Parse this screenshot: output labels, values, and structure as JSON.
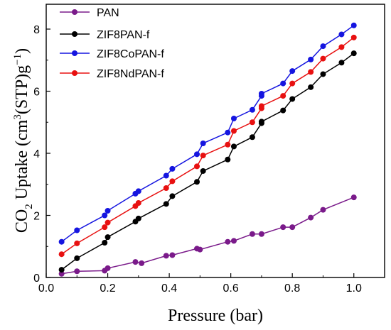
{
  "chart_data": {
    "type": "line",
    "xlabel": "Pressure (bar)",
    "ylabel": {
      "prefix": "CO",
      "sub": "2",
      "middle": " Uptake (cm",
      "sup": "3",
      "suffix": "(STP)g",
      "sup2": "−1",
      "close": ")"
    },
    "xlim": [
      0.0,
      1.1
    ],
    "ylim": [
      0,
      8.8
    ],
    "xticks": [
      0.0,
      0.2,
      0.4,
      0.6,
      0.8,
      1.0
    ],
    "xtick_labels": [
      "0.0",
      "0.2",
      "0.4",
      "0.6",
      "0.8",
      "1.0"
    ],
    "yticks": [
      0,
      2,
      4,
      6,
      8
    ],
    "ytick_labels": [
      "0",
      "2",
      "4",
      "6",
      "8"
    ],
    "legend_position": "top-left",
    "series": [
      {
        "name": "PAN",
        "color": "#7a1a8a",
        "x": [
          0.05,
          0.1,
          0.19,
          0.2,
          0.29,
          0.31,
          0.39,
          0.41,
          0.49,
          0.5,
          0.59,
          0.61,
          0.67,
          0.7,
          0.77,
          0.8,
          0.86,
          0.9,
          1.0
        ],
        "y": [
          0.12,
          0.2,
          0.22,
          0.3,
          0.5,
          0.46,
          0.7,
          0.72,
          0.93,
          0.9,
          1.15,
          1.18,
          1.4,
          1.4,
          1.62,
          1.62,
          1.93,
          2.18,
          2.58
        ]
      },
      {
        "name": "ZIF8PAN-f",
        "color": "#000000",
        "x": [
          0.05,
          0.1,
          0.19,
          0.2,
          0.29,
          0.3,
          0.39,
          0.41,
          0.49,
          0.51,
          0.59,
          0.61,
          0.67,
          0.7,
          0.7,
          0.77,
          0.8,
          0.86,
          0.9,
          0.96,
          1.0
        ],
        "y": [
          0.25,
          0.62,
          1.12,
          1.3,
          1.8,
          1.9,
          2.37,
          2.62,
          3.08,
          3.43,
          3.8,
          4.22,
          4.52,
          4.97,
          5.02,
          5.38,
          5.75,
          6.13,
          6.55,
          6.92,
          7.22
        ]
      },
      {
        "name": "ZIF8CoPAN-f",
        "color": "#1515e0",
        "x": [
          0.05,
          0.1,
          0.19,
          0.2,
          0.29,
          0.3,
          0.39,
          0.41,
          0.49,
          0.51,
          0.59,
          0.61,
          0.67,
          0.7,
          0.7,
          0.77,
          0.8,
          0.86,
          0.9,
          0.96,
          1.0
        ],
        "y": [
          1.15,
          1.52,
          2.0,
          2.15,
          2.7,
          2.78,
          3.28,
          3.5,
          3.97,
          4.32,
          4.67,
          5.12,
          5.4,
          5.85,
          5.92,
          6.25,
          6.65,
          7.02,
          7.45,
          7.83,
          8.12
        ]
      },
      {
        "name": "ZIF8NdPAN-f",
        "color": "#e81010",
        "x": [
          0.05,
          0.1,
          0.19,
          0.2,
          0.29,
          0.3,
          0.39,
          0.41,
          0.49,
          0.51,
          0.59,
          0.61,
          0.67,
          0.7,
          0.7,
          0.77,
          0.8,
          0.86,
          0.9,
          0.96,
          1.0
        ],
        "y": [
          0.75,
          1.1,
          1.62,
          1.77,
          2.3,
          2.4,
          2.88,
          3.1,
          3.58,
          3.93,
          4.28,
          4.72,
          5.0,
          5.45,
          5.52,
          5.85,
          6.25,
          6.62,
          7.05,
          7.42,
          7.73
        ]
      }
    ]
  }
}
